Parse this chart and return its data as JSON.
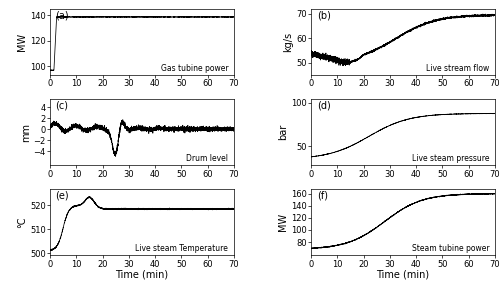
{
  "subplots": [
    {
      "label": "(a)",
      "ylabel": "MW",
      "annotation": "Gas tubine power",
      "ylim": [
        93,
        145
      ],
      "yticks": [
        100,
        120,
        140
      ],
      "type": "gas_turbine_power",
      "show_xticklabels": true
    },
    {
      "label": "(b)",
      "ylabel": "kg/s",
      "annotation": "Live stream flow",
      "ylim": [
        45,
        72
      ],
      "yticks": [
        50,
        60,
        70
      ],
      "type": "live_stream_flow",
      "show_xticklabels": true
    },
    {
      "label": "(c)",
      "ylabel": "mm",
      "annotation": "Drum level",
      "ylim": [
        -6.5,
        5.5
      ],
      "yticks": [
        -4,
        -2,
        0,
        2,
        4
      ],
      "type": "drum_level",
      "show_xticklabels": true
    },
    {
      "label": "(d)",
      "ylabel": "bar",
      "annotation": "Live steam pressure",
      "ylim": [
        28,
        105
      ],
      "yticks": [
        50,
        100
      ],
      "type": "live_steam_pressure",
      "show_xticklabels": true
    },
    {
      "label": "(e)",
      "ylabel": "°C",
      "xlabel": "Time (min)",
      "annotation": "Live steam Temperature",
      "ylim": [
        499,
        527
      ],
      "yticks": [
        500,
        510,
        520
      ],
      "type": "live_steam_temp",
      "show_xticklabels": true
    },
    {
      "label": "(f)",
      "ylabel": "MW",
      "xlabel": "Time (min)",
      "annotation": "Steam tubine power",
      "ylim": [
        58,
        168
      ],
      "yticks": [
        80,
        100,
        120,
        140,
        160
      ],
      "type": "steam_turbine_power",
      "show_xticklabels": true
    }
  ],
  "xlim": [
    0,
    70
  ],
  "xticks": [
    0,
    10,
    20,
    30,
    40,
    50,
    60,
    70
  ],
  "line_color": "#000000",
  "background_color": "#ffffff",
  "font_size": 7
}
